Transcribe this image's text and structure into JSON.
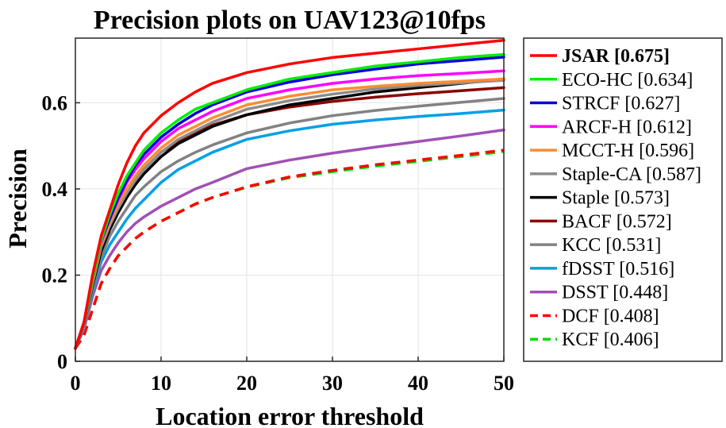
{
  "chart_data": {
    "type": "line",
    "title": "Precision plots on UAV123@10fps",
    "xlabel": "Location error threshold",
    "ylabel": "Precision",
    "xlim": [
      0,
      50
    ],
    "ylim": [
      0,
      0.75
    ],
    "xticks": [
      0,
      10,
      20,
      30,
      40,
      50
    ],
    "yticks": [
      0,
      0.2,
      0.4,
      0.6
    ],
    "xtick_labels": [
      "0",
      "10",
      "20",
      "30",
      "40",
      "50"
    ],
    "ytick_labels": [
      "0",
      "0.2",
      "0.4",
      "0.6"
    ],
    "grid": true,
    "legend_position": "outside-right",
    "x": [
      0,
      1,
      2,
      3,
      4,
      5,
      6,
      7,
      8,
      10,
      12,
      14,
      16,
      20,
      25,
      30,
      35,
      40,
      45,
      50
    ],
    "series": [
      {
        "name": "JSAR [0.675]",
        "color": "#ff0000",
        "dash": false,
        "bold": true,
        "values": [
          0.03,
          0.09,
          0.2,
          0.29,
          0.35,
          0.41,
          0.46,
          0.5,
          0.53,
          0.57,
          0.6,
          0.625,
          0.645,
          0.67,
          0.69,
          0.705,
          0.715,
          0.725,
          0.735,
          0.745
        ]
      },
      {
        "name": "ECO-HC [0.634]",
        "color": "#00ee00",
        "dash": false,
        "values": [
          0.03,
          0.09,
          0.19,
          0.28,
          0.34,
          0.39,
          0.43,
          0.46,
          0.49,
          0.53,
          0.56,
          0.585,
          0.6,
          0.63,
          0.655,
          0.67,
          0.685,
          0.695,
          0.705,
          0.712
        ]
      },
      {
        "name": "STRCF [0.627]",
        "color": "#0000dd",
        "dash": false,
        "values": [
          0.03,
          0.09,
          0.19,
          0.28,
          0.33,
          0.38,
          0.42,
          0.455,
          0.48,
          0.52,
          0.55,
          0.575,
          0.595,
          0.625,
          0.648,
          0.665,
          0.678,
          0.69,
          0.698,
          0.706
        ]
      },
      {
        "name": "ARCF-H [0.612]",
        "color": "#ff00ff",
        "dash": false,
        "values": [
          0.03,
          0.09,
          0.19,
          0.275,
          0.33,
          0.375,
          0.415,
          0.445,
          0.47,
          0.51,
          0.54,
          0.56,
          0.58,
          0.61,
          0.63,
          0.645,
          0.655,
          0.663,
          0.668,
          0.674
        ]
      },
      {
        "name": "MCCT-H [0.596]",
        "color": "#ff8c32",
        "dash": false,
        "values": [
          0.03,
          0.09,
          0.185,
          0.27,
          0.32,
          0.365,
          0.4,
          0.43,
          0.455,
          0.495,
          0.525,
          0.545,
          0.565,
          0.595,
          0.615,
          0.63,
          0.638,
          0.645,
          0.65,
          0.655
        ]
      },
      {
        "name": "Staple-CA [0.587]",
        "color": "#8c8c8c",
        "dash": false,
        "values": [
          0.03,
          0.085,
          0.18,
          0.265,
          0.315,
          0.355,
          0.39,
          0.42,
          0.445,
          0.485,
          0.515,
          0.535,
          0.555,
          0.585,
          0.605,
          0.62,
          0.632,
          0.64,
          0.646,
          0.652
        ]
      },
      {
        "name": "Staple [0.573]",
        "color": "#000000",
        "dash": false,
        "values": [
          0.03,
          0.085,
          0.175,
          0.255,
          0.305,
          0.345,
          0.38,
          0.41,
          0.435,
          0.475,
          0.505,
          0.525,
          0.545,
          0.572,
          0.595,
          0.61,
          0.625,
          0.635,
          0.645,
          0.655
        ]
      },
      {
        "name": "BACF [0.572]",
        "color": "#8b0000",
        "dash": false,
        "values": [
          0.03,
          0.085,
          0.18,
          0.265,
          0.315,
          0.355,
          0.39,
          0.42,
          0.445,
          0.485,
          0.51,
          0.53,
          0.548,
          0.572,
          0.59,
          0.603,
          0.613,
          0.621,
          0.628,
          0.635
        ]
      },
      {
        "name": "KCC [0.531]",
        "color": "#828282",
        "dash": false,
        "values": [
          0.03,
          0.08,
          0.165,
          0.24,
          0.29,
          0.325,
          0.355,
          0.385,
          0.405,
          0.44,
          0.465,
          0.485,
          0.502,
          0.53,
          0.553,
          0.57,
          0.582,
          0.592,
          0.601,
          0.61
        ]
      },
      {
        "name": "fDSST [0.516]",
        "color": "#00a0e6",
        "dash": false,
        "values": [
          0.03,
          0.08,
          0.16,
          0.23,
          0.27,
          0.3,
          0.33,
          0.355,
          0.375,
          0.415,
          0.445,
          0.465,
          0.485,
          0.515,
          0.535,
          0.55,
          0.56,
          0.568,
          0.575,
          0.583
        ]
      },
      {
        "name": "DSST [0.448]",
        "color": "#a050b4",
        "dash": false,
        "values": [
          0.03,
          0.075,
          0.15,
          0.21,
          0.245,
          0.275,
          0.3,
          0.32,
          0.335,
          0.36,
          0.38,
          0.4,
          0.415,
          0.447,
          0.467,
          0.483,
          0.497,
          0.51,
          0.523,
          0.537
        ]
      },
      {
        "name": "DCF [0.408]",
        "color": "#ff0000",
        "dash": true,
        "values": [
          0.03,
          0.06,
          0.12,
          0.18,
          0.215,
          0.245,
          0.265,
          0.285,
          0.3,
          0.325,
          0.345,
          0.365,
          0.38,
          0.405,
          0.428,
          0.443,
          0.456,
          0.467,
          0.478,
          0.49
        ]
      },
      {
        "name": "KCF [0.406]",
        "color": "#00dd00",
        "dash": true,
        "values": [
          0.03,
          0.06,
          0.12,
          0.18,
          0.215,
          0.245,
          0.265,
          0.285,
          0.3,
          0.325,
          0.345,
          0.365,
          0.38,
          0.404,
          0.426,
          0.44,
          0.453,
          0.464,
          0.475,
          0.487
        ]
      }
    ]
  }
}
